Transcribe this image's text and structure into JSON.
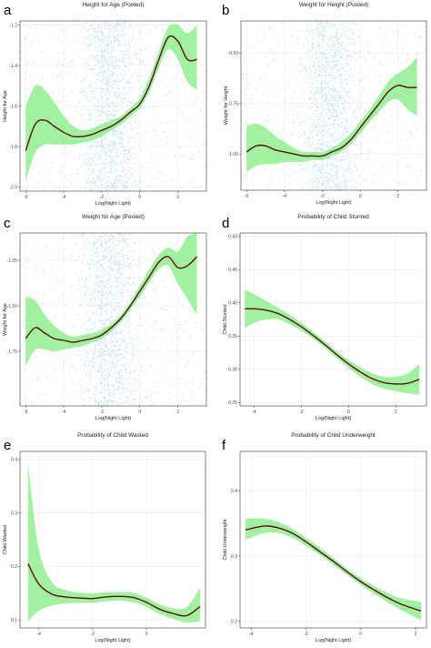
{
  "colors": {
    "band": "#90EE90",
    "line": "#5a1010",
    "points": "#87c6e0",
    "grid": "#ebebeb"
  },
  "chart_data": [
    {
      "panel": "a",
      "type": "line",
      "title": "Height for Age (Pooled)",
      "xlabel": "Log(Night Light)",
      "ylabel": "Height for Age",
      "xlim": [
        -6.3,
        3.5
      ],
      "ylim": [
        -2.02,
        -1.18
      ],
      "xticks": [
        "-6",
        "-4",
        "-2",
        "0",
        "2"
      ],
      "yticks": [
        "-2.0",
        "-1.8",
        "-1.6",
        "-1.4",
        "-1.2"
      ],
      "grid": true,
      "scatter_background": true,
      "x": [
        -6.0,
        -5.5,
        -5.0,
        -4.5,
        -4.0,
        -3.5,
        -3.0,
        -2.5,
        -2.0,
        -1.5,
        -1.0,
        -0.5,
        0.0,
        0.5,
        1.0,
        1.5,
        2.0,
        2.5,
        3.0
      ],
      "y": [
        -1.82,
        -1.69,
        -1.67,
        -1.7,
        -1.73,
        -1.75,
        -1.75,
        -1.74,
        -1.72,
        -1.7,
        -1.67,
        -1.63,
        -1.59,
        -1.5,
        -1.37,
        -1.26,
        -1.28,
        -1.37,
        -1.37
      ],
      "lower": [
        -1.97,
        -1.83,
        -1.79,
        -1.79,
        -1.79,
        -1.79,
        -1.78,
        -1.77,
        -1.75,
        -1.72,
        -1.69,
        -1.65,
        -1.61,
        -1.53,
        -1.41,
        -1.32,
        -1.37,
        -1.48,
        -1.52
      ],
      "upper": [
        -1.6,
        -1.5,
        -1.52,
        -1.58,
        -1.65,
        -1.7,
        -1.72,
        -1.71,
        -1.69,
        -1.67,
        -1.65,
        -1.61,
        -1.56,
        -1.46,
        -1.33,
        -1.21,
        -1.2,
        -1.24,
        -1.2
      ]
    },
    {
      "panel": "b",
      "type": "line",
      "title": "Weight for Height (Pooled)",
      "xlabel": "Log(Night Light)",
      "ylabel": "Weight for Height",
      "xlim": [
        -6.3,
        3.5
      ],
      "ylim": [
        -1.18,
        -0.34
      ],
      "xticks": [
        "-6",
        "-4",
        "-2",
        "0",
        "2"
      ],
      "yticks": [
        "-1.00",
        "-0.75",
        "-0.50"
      ],
      "grid": true,
      "scatter_background": true,
      "x": [
        -6.0,
        -5.5,
        -5.0,
        -4.5,
        -4.0,
        -3.5,
        -3.0,
        -2.5,
        -2.0,
        -1.5,
        -1.0,
        -0.5,
        0.0,
        0.5,
        1.0,
        1.5,
        2.0,
        2.5,
        3.0
      ],
      "y": [
        -0.99,
        -0.96,
        -0.96,
        -0.98,
        -0.99,
        -1.0,
        -1.01,
        -1.01,
        -1.01,
        -0.99,
        -0.97,
        -0.93,
        -0.87,
        -0.81,
        -0.75,
        -0.69,
        -0.66,
        -0.67,
        -0.67
      ],
      "lower": [
        -1.09,
        -1.06,
        -1.05,
        -1.05,
        -1.04,
        -1.04,
        -1.04,
        -1.03,
        -1.03,
        -1.01,
        -0.99,
        -0.95,
        -0.9,
        -0.84,
        -0.79,
        -0.74,
        -0.73,
        -0.78,
        -0.81
      ],
      "upper": [
        -0.86,
        -0.85,
        -0.87,
        -0.91,
        -0.94,
        -0.97,
        -0.99,
        -0.99,
        -0.99,
        -0.97,
        -0.94,
        -0.9,
        -0.84,
        -0.78,
        -0.71,
        -0.64,
        -0.6,
        -0.57,
        -0.52
      ]
    },
    {
      "panel": "c",
      "type": "line",
      "title": "Weight for Age (Pooled)",
      "xlabel": "Log(Night Light)",
      "ylabel": "Weight for Age",
      "xlim": [
        -6.3,
        3.5
      ],
      "ylim": [
        -2.05,
        -1.1
      ],
      "xticks": [
        "-6",
        "-4",
        "-2",
        "0",
        "2"
      ],
      "yticks": [
        "-1.75",
        "-1.50",
        "-1.25"
      ],
      "grid": true,
      "scatter_background": true,
      "x": [
        -6.0,
        -5.5,
        -5.0,
        -4.5,
        -4.0,
        -3.5,
        -3.0,
        -2.5,
        -2.0,
        -1.5,
        -1.0,
        -0.5,
        0.0,
        0.5,
        1.0,
        1.5,
        2.0,
        2.5,
        3.0
      ],
      "y": [
        -1.68,
        -1.62,
        -1.65,
        -1.68,
        -1.69,
        -1.7,
        -1.69,
        -1.68,
        -1.66,
        -1.62,
        -1.57,
        -1.5,
        -1.42,
        -1.34,
        -1.26,
        -1.23,
        -1.29,
        -1.28,
        -1.23
      ],
      "lower": [
        -1.83,
        -1.74,
        -1.74,
        -1.75,
        -1.74,
        -1.73,
        -1.72,
        -1.7,
        -1.68,
        -1.64,
        -1.59,
        -1.52,
        -1.45,
        -1.37,
        -1.3,
        -1.28,
        -1.38,
        -1.46,
        -1.55
      ],
      "upper": [
        -1.45,
        -1.47,
        -1.55,
        -1.61,
        -1.65,
        -1.67,
        -1.66,
        -1.65,
        -1.63,
        -1.6,
        -1.55,
        -1.48,
        -1.39,
        -1.3,
        -1.22,
        -1.18,
        -1.2,
        -1.12,
        -1.1
      ]
    },
    {
      "panel": "d",
      "type": "line",
      "title": "Probability of Child Stunted",
      "xlabel": "Log(Night Light)",
      "ylabel": "Child Stunted",
      "xlim": [
        -4.6,
        3.3
      ],
      "ylim": [
        0.245,
        0.505
      ],
      "xticks": [
        "-4",
        "-2",
        "0",
        "2"
      ],
      "yticks": [
        "0.25",
        "0.30",
        "0.35",
        "0.40",
        "0.45",
        "0.50"
      ],
      "grid": true,
      "scatter_background": false,
      "x": [
        -4.4,
        -4.0,
        -3.5,
        -3.0,
        -2.5,
        -2.0,
        -1.5,
        -1.0,
        -0.5,
        0.0,
        0.5,
        1.0,
        1.5,
        2.0,
        2.5,
        3.0
      ],
      "y": [
        0.391,
        0.391,
        0.389,
        0.384,
        0.375,
        0.364,
        0.351,
        0.337,
        0.322,
        0.308,
        0.296,
        0.286,
        0.28,
        0.278,
        0.279,
        0.285
      ],
      "lower": [
        0.362,
        0.37,
        0.375,
        0.375,
        0.368,
        0.358,
        0.346,
        0.332,
        0.317,
        0.302,
        0.289,
        0.278,
        0.271,
        0.267,
        0.264,
        0.262
      ],
      "upper": [
        0.42,
        0.413,
        0.403,
        0.393,
        0.382,
        0.37,
        0.356,
        0.342,
        0.327,
        0.314,
        0.303,
        0.294,
        0.289,
        0.289,
        0.294,
        0.308
      ]
    },
    {
      "panel": "e",
      "type": "line",
      "title": "Probability of Child Wasted",
      "xlabel": "Log(Night Light)",
      "ylabel": "Child Wasted",
      "xlim": [
        -4.7,
        2.2
      ],
      "ylim": [
        0.085,
        0.415
      ],
      "xticks": [
        "-4",
        "-2",
        "0"
      ],
      "yticks": [
        "0.1",
        "0.2",
        "0.3",
        "0.4"
      ],
      "grid": true,
      "scatter_background": false,
      "x": [
        -4.4,
        -4.0,
        -3.5,
        -3.0,
        -2.5,
        -2.0,
        -1.5,
        -1.0,
        -0.5,
        0.0,
        0.5,
        1.0,
        1.5,
        2.0
      ],
      "y": [
        0.205,
        0.167,
        0.148,
        0.143,
        0.141,
        0.14,
        0.143,
        0.144,
        0.142,
        0.133,
        0.12,
        0.112,
        0.108,
        0.125
      ],
      "lower": [
        0.098,
        0.117,
        0.127,
        0.131,
        0.132,
        0.132,
        0.135,
        0.136,
        0.133,
        0.124,
        0.111,
        0.102,
        0.095,
        0.098
      ],
      "upper": [
        0.392,
        0.232,
        0.17,
        0.156,
        0.151,
        0.15,
        0.152,
        0.152,
        0.151,
        0.142,
        0.129,
        0.122,
        0.124,
        0.16
      ]
    },
    {
      "panel": "f",
      "type": "line",
      "title": "Probability of Child Underweight",
      "xlabel": "Log(Night Light)",
      "ylabel": "Child Underweight",
      "xlim": [
        -4.4,
        2.4
      ],
      "ylim": [
        0.19,
        0.46
      ],
      "xticks": [
        "-4",
        "-2",
        "0",
        "2"
      ],
      "yticks": [
        "0.2",
        "0.3",
        "0.4"
      ],
      "grid": true,
      "scatter_background": false,
      "x": [
        -4.2,
        -3.5,
        -3.0,
        -2.5,
        -2.0,
        -1.5,
        -1.0,
        -0.5,
        0.0,
        0.5,
        1.0,
        1.5,
        2.2
      ],
      "y": [
        0.34,
        0.346,
        0.343,
        0.335,
        0.322,
        0.307,
        0.292,
        0.276,
        0.261,
        0.248,
        0.236,
        0.226,
        0.216
      ],
      "lower": [
        0.325,
        0.335,
        0.335,
        0.328,
        0.316,
        0.302,
        0.287,
        0.271,
        0.256,
        0.242,
        0.229,
        0.217,
        0.202
      ],
      "upper": [
        0.357,
        0.357,
        0.352,
        0.342,
        0.328,
        0.313,
        0.297,
        0.281,
        0.266,
        0.254,
        0.243,
        0.235,
        0.23
      ]
    }
  ]
}
